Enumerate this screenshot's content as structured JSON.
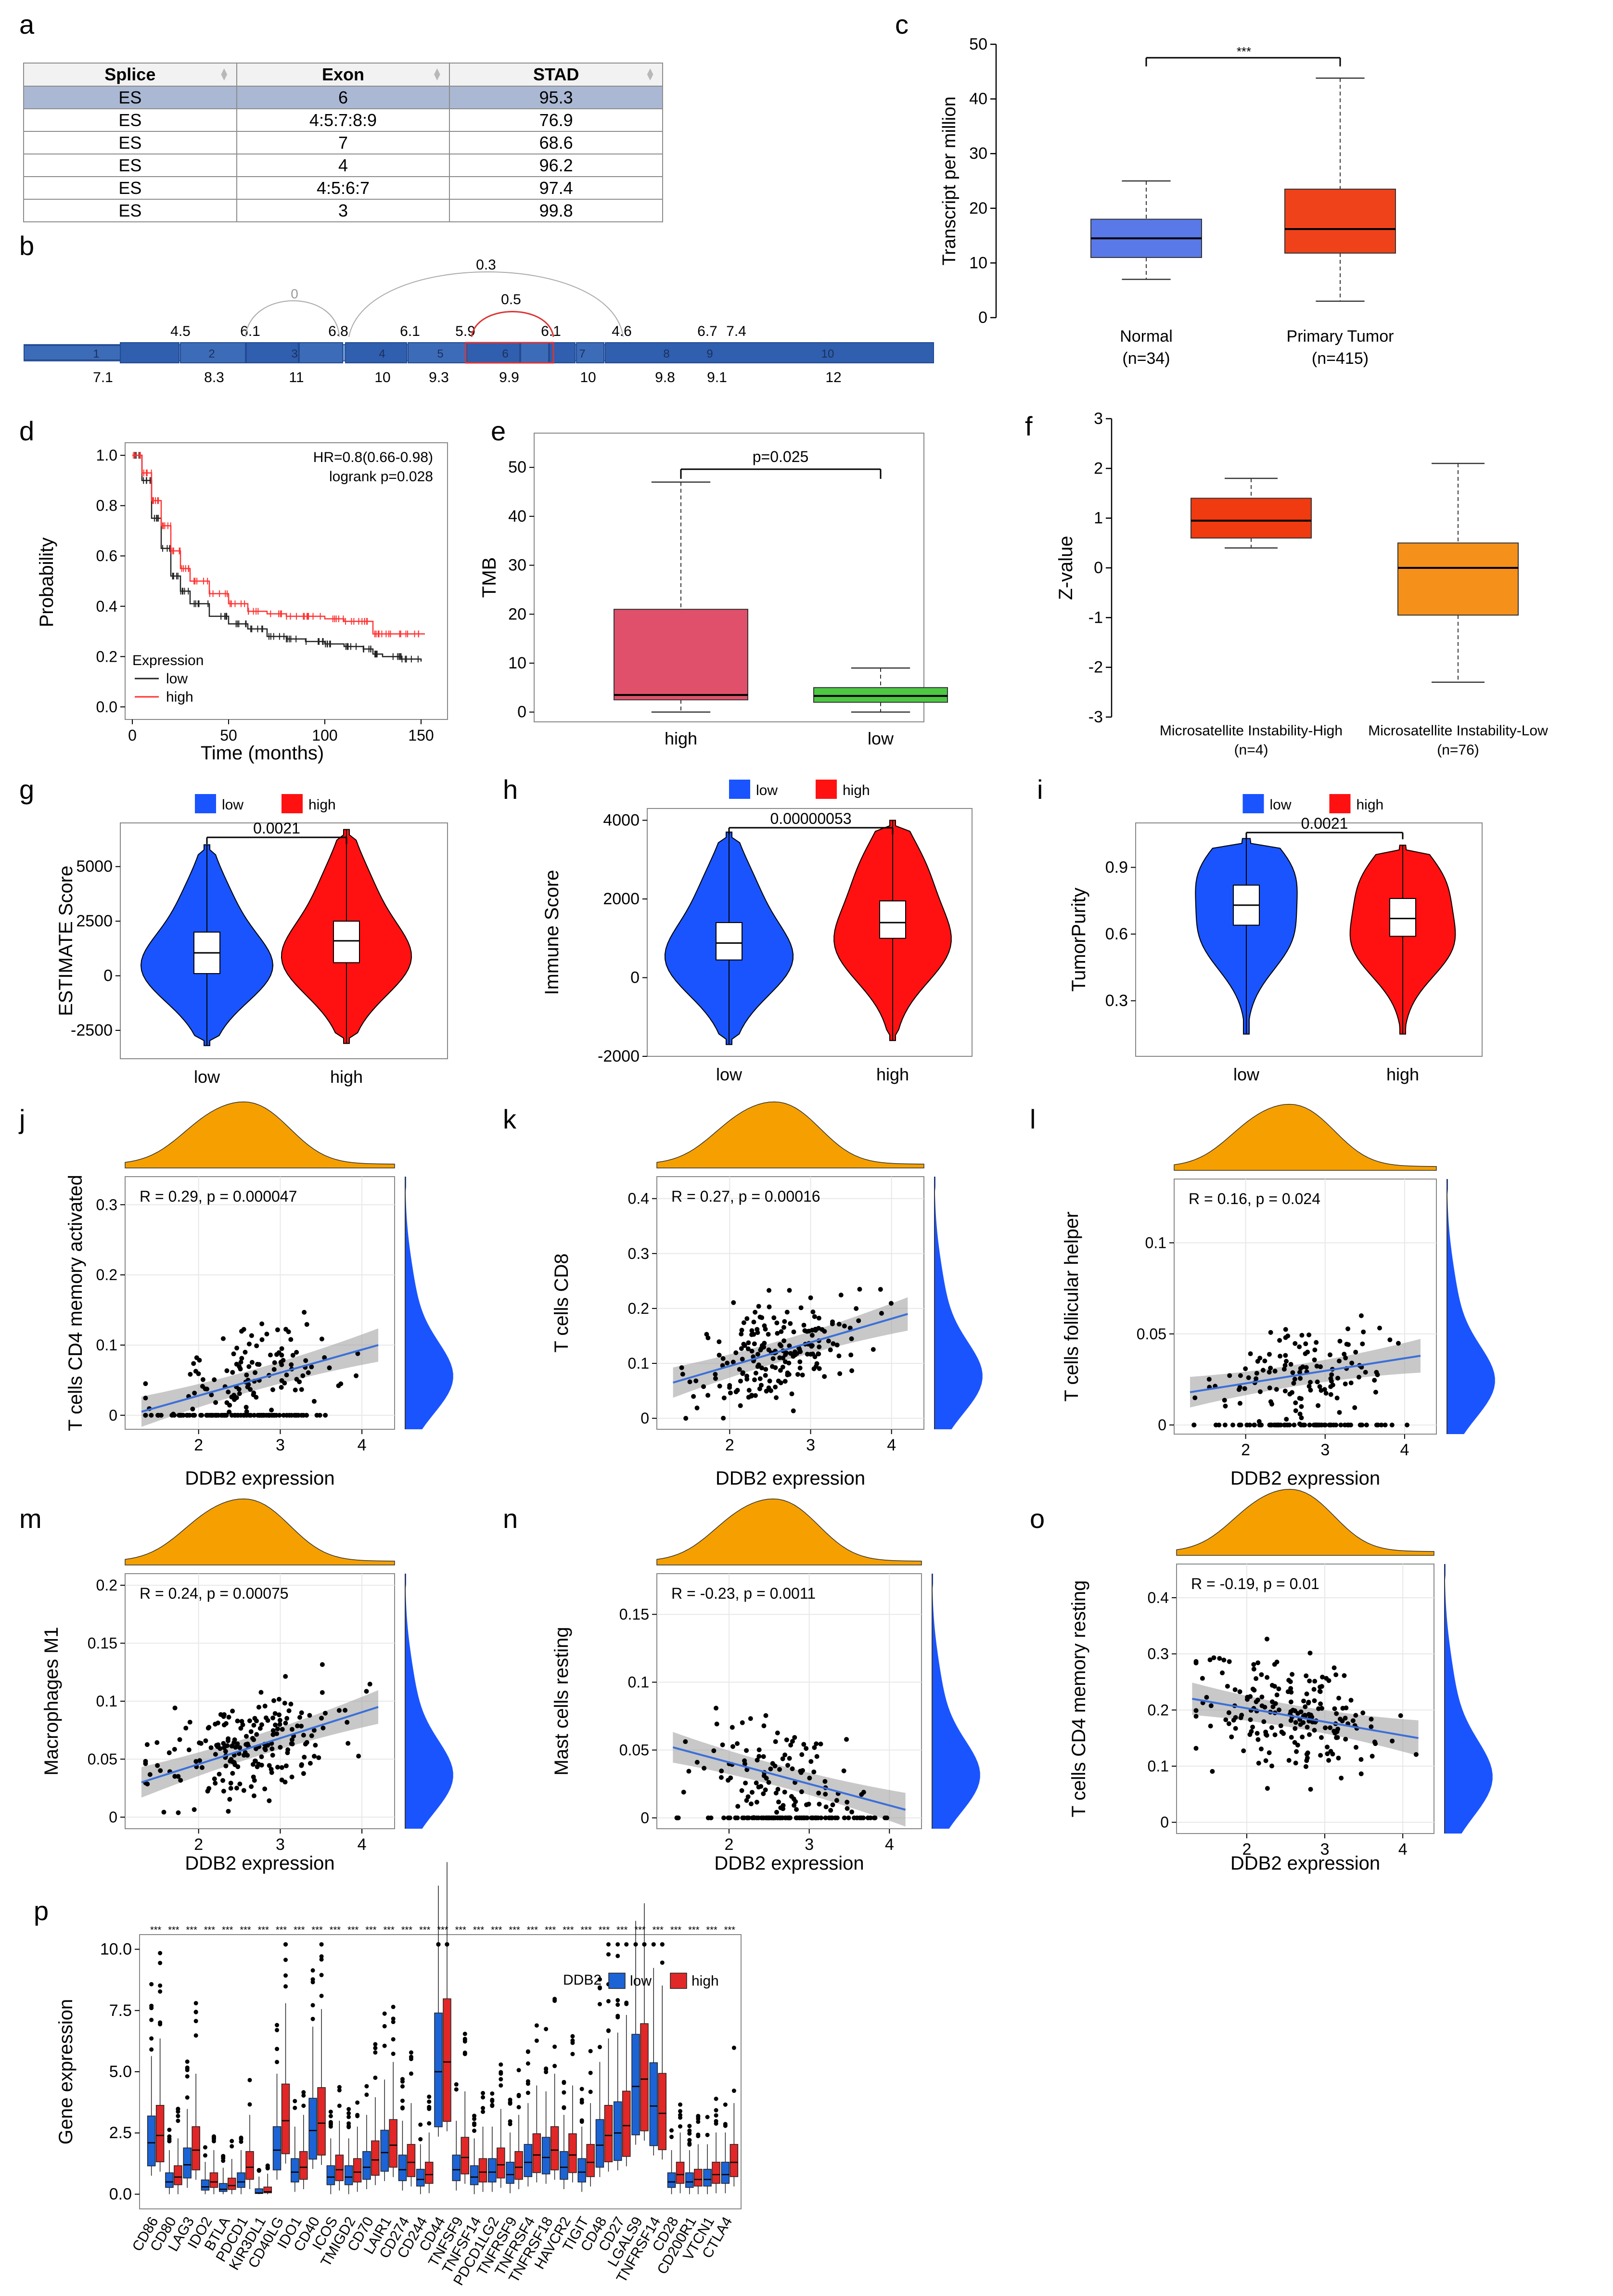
{
  "panel_letters": [
    "a",
    "b",
    "c",
    "d",
    "e",
    "f",
    "g",
    "h",
    "i",
    "j",
    "k",
    "l",
    "m",
    "n",
    "o",
    "p"
  ],
  "colors": {
    "blue": "#1a54ff",
    "red": "#ff1111",
    "orange": "#f5a000",
    "dark_blue": "#2748a0"
  },
  "table_a": {
    "headers": [
      "Splice",
      "Exon",
      "STAD"
    ],
    "rows": [
      [
        "ES",
        "6",
        "95.3"
      ],
      [
        "ES",
        "4:5:7:8:9",
        "76.9"
      ],
      [
        "ES",
        "7",
        "68.6"
      ],
      [
        "ES",
        "4",
        "96.2"
      ],
      [
        "ES",
        "4:5:6:7",
        "97.4"
      ],
      [
        "ES",
        "3",
        "99.8"
      ]
    ]
  },
  "splice_b": {
    "exon_numbers": [
      "1",
      "2",
      "3",
      "4",
      "5",
      "6",
      "7",
      "8",
      "9",
      "10"
    ],
    "top_labels": [
      "4.5",
      "6.1",
      "6.8",
      "6.1",
      "5.9",
      "6.1",
      "4.6",
      "6.7",
      "7.4"
    ],
    "bottom_labels": [
      "7.1",
      "8.3",
      "11",
      "10",
      "9.3",
      "9.9",
      "10",
      "9.8",
      "9.1",
      "12"
    ],
    "arc_labels": [
      "0",
      "0.5",
      "0.3"
    ]
  },
  "chart_data": [
    {
      "panel": "c",
      "type": "box",
      "ylabel": "Transcript per million",
      "ylim": [
        0,
        50
      ],
      "yticks": [
        0,
        10,
        20,
        30,
        40,
        50
      ],
      "categories": [
        "Normal",
        "Primary Tumor"
      ],
      "n_labels": [
        "(n=34)",
        "(n=415)"
      ],
      "boxes": [
        {
          "min": 7,
          "q1": 11,
          "median": 14.5,
          "q3": 18,
          "max": 25,
          "color": "#5a79e8"
        },
        {
          "min": 3,
          "q1": 11.8,
          "median": 16.2,
          "q3": 23.5,
          "max": 43.8,
          "color": "#f0421a"
        }
      ],
      "significance": "***"
    },
    {
      "panel": "d",
      "type": "line",
      "title_lines": [
        "HR=0.8(0.66-0.98)",
        "logrank p=0.028"
      ],
      "xlabel": "Time (months)",
      "ylabel": "Probability",
      "xlim": [
        0,
        160
      ],
      "ylim": [
        0,
        1
      ],
      "xticks": [
        0,
        50,
        100,
        150
      ],
      "yticks": [
        0,
        0.2,
        0.4,
        0.6,
        0.8,
        1.0
      ],
      "legend_title": "Expression",
      "series": [
        {
          "name": "low",
          "color": "#222222",
          "x": [
            0,
            5,
            10,
            15,
            20,
            25,
            30,
            40,
            50,
            60,
            70,
            80,
            90,
            100,
            110,
            120,
            125,
            130,
            140,
            150
          ],
          "y": [
            1,
            0.9,
            0.75,
            0.63,
            0.52,
            0.46,
            0.41,
            0.36,
            0.33,
            0.31,
            0.28,
            0.27,
            0.26,
            0.25,
            0.24,
            0.23,
            0.21,
            0.2,
            0.19,
            0.18
          ]
        },
        {
          "name": "high",
          "color": "#ff3333",
          "x": [
            0,
            5,
            10,
            15,
            20,
            25,
            30,
            40,
            50,
            60,
            70,
            80,
            90,
            100,
            110,
            120,
            125,
            130,
            140,
            152
          ],
          "y": [
            1,
            0.93,
            0.82,
            0.72,
            0.62,
            0.55,
            0.5,
            0.45,
            0.41,
            0.38,
            0.37,
            0.36,
            0.36,
            0.35,
            0.34,
            0.34,
            0.29,
            0.29,
            0.29,
            0.29
          ]
        }
      ]
    },
    {
      "panel": "e",
      "type": "box",
      "ylabel": "TMB",
      "ylim": [
        -2,
        57
      ],
      "yticks": [
        0,
        10,
        20,
        30,
        40,
        50
      ],
      "categories": [
        "high",
        "low"
      ],
      "boxes": [
        {
          "min": 0,
          "q1": 2.5,
          "median": 3.5,
          "q3": 21,
          "max": 47,
          "color": "#e0506a"
        },
        {
          "min": 0,
          "q1": 2,
          "median": 3.3,
          "q3": 5,
          "max": 9,
          "color": "#4dc843"
        }
      ],
      "p_label": "p=0.025"
    },
    {
      "panel": "f",
      "type": "box",
      "ylabel": "Z-value",
      "ylim": [
        -3,
        3
      ],
      "yticks": [
        -3,
        -2,
        -1,
        0,
        1,
        2,
        3
      ],
      "categories": [
        "Microsatellite Instability-High",
        "Microsatellite Instability-Low"
      ],
      "n_labels": [
        "(n=4)",
        "(n=76)"
      ],
      "boxes": [
        {
          "min": 0.4,
          "q1": 0.6,
          "median": 0.95,
          "q3": 1.4,
          "max": 1.8,
          "color": "#f03a10"
        },
        {
          "min": -2.3,
          "q1": -0.95,
          "median": 0.0,
          "q3": 0.5,
          "max": 2.1,
          "color": "#f5901a"
        }
      ]
    },
    {
      "panel": "g",
      "type": "violin",
      "ylabel": "ESTIMATE Score",
      "ylim": [
        -3800,
        7000
      ],
      "yticks": [
        -2500,
        0,
        2500,
        5000
      ],
      "categories": [
        "low",
        "high"
      ],
      "legend": [
        "low",
        "high"
      ],
      "p_label": "0.0021",
      "boxes": [
        {
          "q1": 100,
          "median": 1050,
          "q3": 2000,
          "color": "#1a54ff"
        },
        {
          "q1": 600,
          "median": 1600,
          "q3": 2500,
          "color": "#ff1111"
        }
      ],
      "range": [
        [
          -3200,
          6000
        ],
        [
          -3100,
          6700
        ]
      ]
    },
    {
      "panel": "h",
      "type": "violin",
      "ylabel": "Immune Score",
      "ylim": [
        -2000,
        4300
      ],
      "yticks": [
        -2000,
        0,
        2000,
        4000
      ],
      "categories": [
        "low",
        "high"
      ],
      "legend": [
        "low",
        "high"
      ],
      "p_label": "0.00000053",
      "boxes": [
        {
          "q1": 450,
          "median": 880,
          "q3": 1400,
          "color": "#1a54ff"
        },
        {
          "q1": 1000,
          "median": 1400,
          "q3": 1950,
          "color": "#ff1111"
        }
      ],
      "range": [
        [
          -1700,
          3700
        ],
        [
          -1600,
          4000
        ]
      ]
    },
    {
      "panel": "i",
      "type": "violin",
      "ylabel": "TumorPurity",
      "ylim": [
        0.05,
        1.1
      ],
      "yticks": [
        0.3,
        0.6,
        0.9
      ],
      "categories": [
        "low",
        "high"
      ],
      "legend": [
        "low",
        "high"
      ],
      "p_label": "0.0021",
      "boxes": [
        {
          "q1": 0.64,
          "median": 0.73,
          "q3": 0.82,
          "color": "#1a54ff"
        },
        {
          "q1": 0.59,
          "median": 0.67,
          "q3": 0.76,
          "color": "#ff1111"
        }
      ],
      "range": [
        [
          0.15,
          1.03
        ],
        [
          0.15,
          1.0
        ]
      ]
    },
    {
      "panel": "j",
      "type": "scatter",
      "ylabel": "T cells CD4 memory activated",
      "xlabel": "DDB2 expression",
      "stat": "R = 0.29, p = 0.000047",
      "xlim": [
        1.1,
        4.4
      ],
      "ylim": [
        -0.02,
        0.34
      ],
      "xticks": [
        2,
        3,
        4
      ],
      "yticks": [
        0,
        0.1,
        0.2,
        0.3
      ],
      "fit": [
        [
          1.3,
          0.005
        ],
        [
          4.2,
          0.1
        ]
      ],
      "seed": 11,
      "y_mode": "zeroinf"
    },
    {
      "panel": "k",
      "type": "scatter",
      "ylabel": "T cells CD8",
      "xlabel": "DDB2 expression",
      "stat": "R = 0.27, p = 0.00016",
      "xlim": [
        1.1,
        4.4
      ],
      "ylim": [
        -0.02,
        0.44
      ],
      "xticks": [
        2,
        3,
        4
      ],
      "yticks": [
        0,
        0.1,
        0.2,
        0.3,
        0.4
      ],
      "fit": [
        [
          1.3,
          0.065
        ],
        [
          4.2,
          0.19
        ]
      ],
      "seed": 23,
      "y_mode": "normal"
    },
    {
      "panel": "l",
      "type": "scatter",
      "ylabel": "T cells follicular helper",
      "xlabel": "DDB2 expression",
      "stat": "R = 0.16, p = 0.024",
      "xlim": [
        1.1,
        4.4
      ],
      "ylim": [
        -0.005,
        0.135
      ],
      "xticks": [
        2,
        3,
        4
      ],
      "yticks": [
        0,
        0.05,
        0.1
      ],
      "fit": [
        [
          1.3,
          0.018
        ],
        [
          4.2,
          0.038
        ]
      ],
      "seed": 37,
      "y_mode": "zeroinf"
    },
    {
      "panel": "m",
      "type": "scatter",
      "ylabel": "Macrophages M1",
      "xlabel": "DDB2 expression",
      "stat": "R = 0.24, p = 0.00075",
      "xlim": [
        1.1,
        4.4
      ],
      "ylim": [
        -0.01,
        0.21
      ],
      "xticks": [
        2,
        3,
        4
      ],
      "yticks": [
        0,
        0.05,
        0.1,
        0.15,
        0.2
      ],
      "fit": [
        [
          1.3,
          0.03
        ],
        [
          4.2,
          0.095
        ]
      ],
      "seed": 41,
      "y_mode": "normal"
    },
    {
      "panel": "n",
      "type": "scatter",
      "ylabel": "Mast cells resting",
      "xlabel": "DDB2 expression",
      "stat": "R = -0.23, p = 0.0011",
      "xlim": [
        1.1,
        4.4
      ],
      "ylim": [
        -0.008,
        0.18
      ],
      "xticks": [
        2,
        3,
        4
      ],
      "yticks": [
        0,
        0.05,
        0.1,
        0.15
      ],
      "fit": [
        [
          1.3,
          0.052
        ],
        [
          4.2,
          0.006
        ]
      ],
      "seed": 53,
      "y_mode": "zeroinf"
    },
    {
      "panel": "o",
      "type": "scatter",
      "ylabel": "T cells CD4 memory resting",
      "xlabel": "DDB2 expression",
      "stat": "R = -0.19, p = 0.01",
      "xlim": [
        1.1,
        4.4
      ],
      "ylim": [
        -0.02,
        0.46
      ],
      "xticks": [
        2,
        3,
        4
      ],
      "yticks": [
        0,
        0.1,
        0.2,
        0.3,
        0.4
      ],
      "fit": [
        [
          1.3,
          0.22
        ],
        [
          4.2,
          0.15
        ]
      ],
      "seed": 67,
      "y_mode": "normal"
    },
    {
      "panel": "p",
      "type": "box",
      "ylabel": "Gene expression",
      "ylim": [
        -0.6,
        10.6
      ],
      "yticks": [
        0,
        2.5,
        5,
        7.5,
        10
      ],
      "yticklabels": [
        "0.0",
        "2.5",
        "5.0",
        "7.5",
        "10.0"
      ],
      "legend_title": "DDB2",
      "legend": [
        "low",
        "high"
      ],
      "significance": "***",
      "categories": [
        "CD86",
        "CD80",
        "LAG3",
        "IDO2",
        "BTLA",
        "PDCD1",
        "KIR3DL1",
        "CD40LG",
        "IDO1",
        "CD40",
        "ICOS",
        "TMIGD2",
        "CD70",
        "LAIR1",
        "CD274",
        "CD244",
        "CD44",
        "TNFSF9",
        "TNFSF14",
        "PDCD1LG2",
        "TNFRSF9",
        "TNFRSF4",
        "TNFRSF18",
        "HAVCR2",
        "TIGIT",
        "CD48",
        "CD27",
        "LGALS9",
        "TNFRSF14",
        "CD28",
        "CD200R1",
        "VTCN1",
        "CTLA4"
      ],
      "medians_low": [
        2.1,
        0.5,
        1.2,
        0.3,
        0.2,
        0.5,
        0.05,
        1.8,
        0.9,
        2.6,
        0.7,
        0.7,
        1.1,
        1.7,
        1.0,
        0.6,
        5.0,
        1.0,
        0.7,
        0.9,
        0.8,
        1.3,
        1.5,
        1.1,
        0.9,
        2.0,
        2.5,
        4.4,
        3.6,
        0.5,
        0.5,
        0.6,
        0.8
      ],
      "medians_high": [
        2.4,
        0.7,
        1.8,
        0.5,
        0.35,
        1.1,
        0.1,
        3.0,
        1.1,
        2.9,
        1.0,
        0.9,
        1.4,
        2.0,
        1.3,
        0.8,
        5.4,
        1.5,
        0.9,
        1.2,
        1.1,
        1.6,
        1.8,
        1.6,
        1.3,
        2.4,
        2.8,
        4.7,
        3.3,
        0.8,
        0.6,
        0.8,
        1.3
      ]
    }
  ]
}
